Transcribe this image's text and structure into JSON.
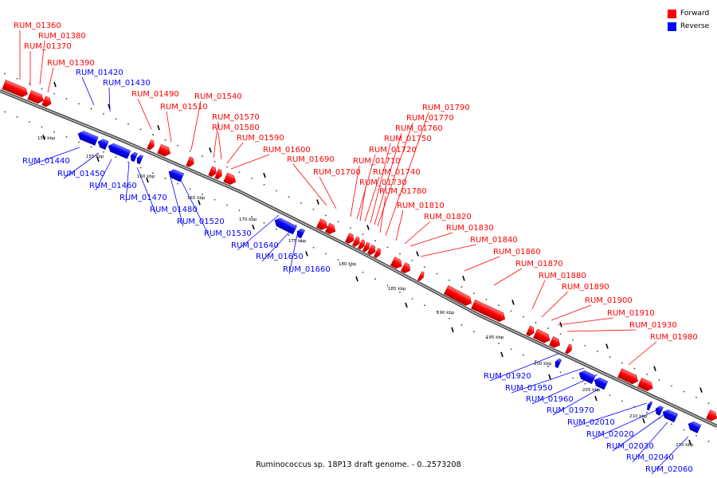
{
  "caption": "Ruminococcus sp. 18P13 draft genome. - 0..2573208",
  "colors": {
    "forward": "#ff0000",
    "reverse": "#0000ff",
    "backbone": "#888888",
    "tick": "#000000"
  },
  "legend": {
    "items": [
      {
        "label": "Forward",
        "color": "#ff0000"
      },
      {
        "label": "Reverse",
        "color": "#0000ff"
      }
    ]
  },
  "scale_labels": [
    "150 kbp",
    "155 kbp",
    "160 kbp",
    "165 kbp",
    "170 kbp",
    "175 kbp",
    "180 kbp",
    "185 kbp",
    "190 kbp",
    "195 kbp",
    "200 kbp",
    "205 kbp",
    "210 kbp",
    "215 kbp"
  ],
  "forward_genes": [
    "RUM_01360",
    "RUM_01370",
    "RUM_01380",
    "RUM_01390",
    "RUM_01490",
    "RUM_01510",
    "RUM_01540",
    "RUM_01570",
    "RUM_01580",
    "RUM_01590",
    "RUM_01600",
    "RUM_01690",
    "RUM_01700",
    "RUM_01710",
    "RUM_01720",
    "RUM_01730",
    "RUM_01740",
    "RUM_01750",
    "RUM_01760",
    "RUM_01770",
    "RUM_01780",
    "RUM_01790",
    "RUM_01810",
    "RUM_01820",
    "RUM_01830",
    "RUM_01840",
    "RUM_01860",
    "RUM_01870",
    "RUM_01880",
    "RUM_01890",
    "RUM_01900",
    "RUM_01910",
    "RUM_01930",
    "RUM_01980"
  ],
  "reverse_genes": [
    "RUM_01420",
    "RUM_01430",
    "RUM_01440",
    "RUM_01450",
    "RUM_01460",
    "RUM_01470",
    "RUM_01480",
    "RUM_01520",
    "RUM_01530",
    "RUM_01640",
    "RUM_01650",
    "RUM_01660",
    "RUM_01920",
    "RUM_01950",
    "RUM_01960",
    "RUM_01970",
    "RUM_02010",
    "RUM_02020",
    "RUM_02030",
    "RUM_02040",
    "RUM_02060"
  ]
}
